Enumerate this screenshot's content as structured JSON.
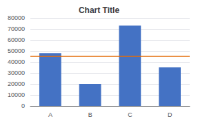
{
  "chart_data": {
    "type": "bar",
    "title": "Chart Title",
    "categories": [
      "A",
      "B",
      "C",
      "D"
    ],
    "values": [
      48000,
      20000,
      73000,
      35000
    ],
    "color": "#4472C4",
    "benchmark": {
      "value": 45000,
      "color": "#E36C09"
    },
    "ylim": [
      0,
      80000
    ],
    "yticks": [
      0,
      10000,
      20000,
      30000,
      40000,
      50000,
      60000,
      70000,
      80000
    ],
    "grid": true
  }
}
